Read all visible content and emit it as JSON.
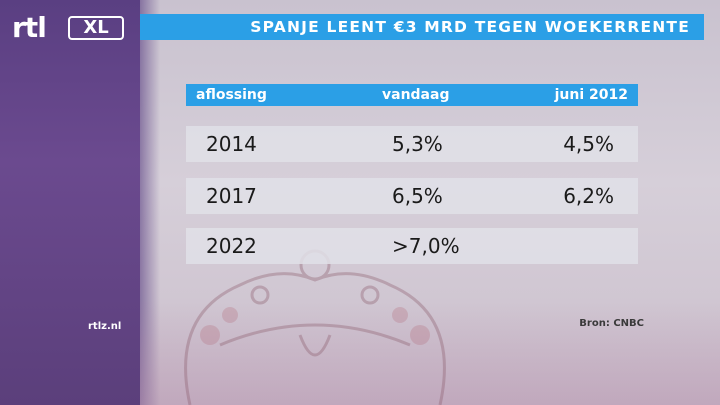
{
  "logo": {
    "brand": "rtl",
    "suffix": "XL"
  },
  "title": "SPANJE LEENT €3 MRD TEGEN WOEKERRENTE",
  "table": {
    "headers": [
      "aflossing",
      "vandaag",
      "juni 2012"
    ],
    "rows": [
      {
        "year": "2014",
        "today": "5,3%",
        "june": "4,5%"
      },
      {
        "year": "2017",
        "today": "6,5%",
        "june": "6,2%"
      },
      {
        "year": "2022",
        "today": ">7,0%",
        "june": ""
      }
    ]
  },
  "source": "Bron: CNBC",
  "site": "rtlz.nl",
  "colors": {
    "accent": "#2b9fe6",
    "purple": "#5a3f82",
    "row_bg": "#e1e1e8"
  }
}
